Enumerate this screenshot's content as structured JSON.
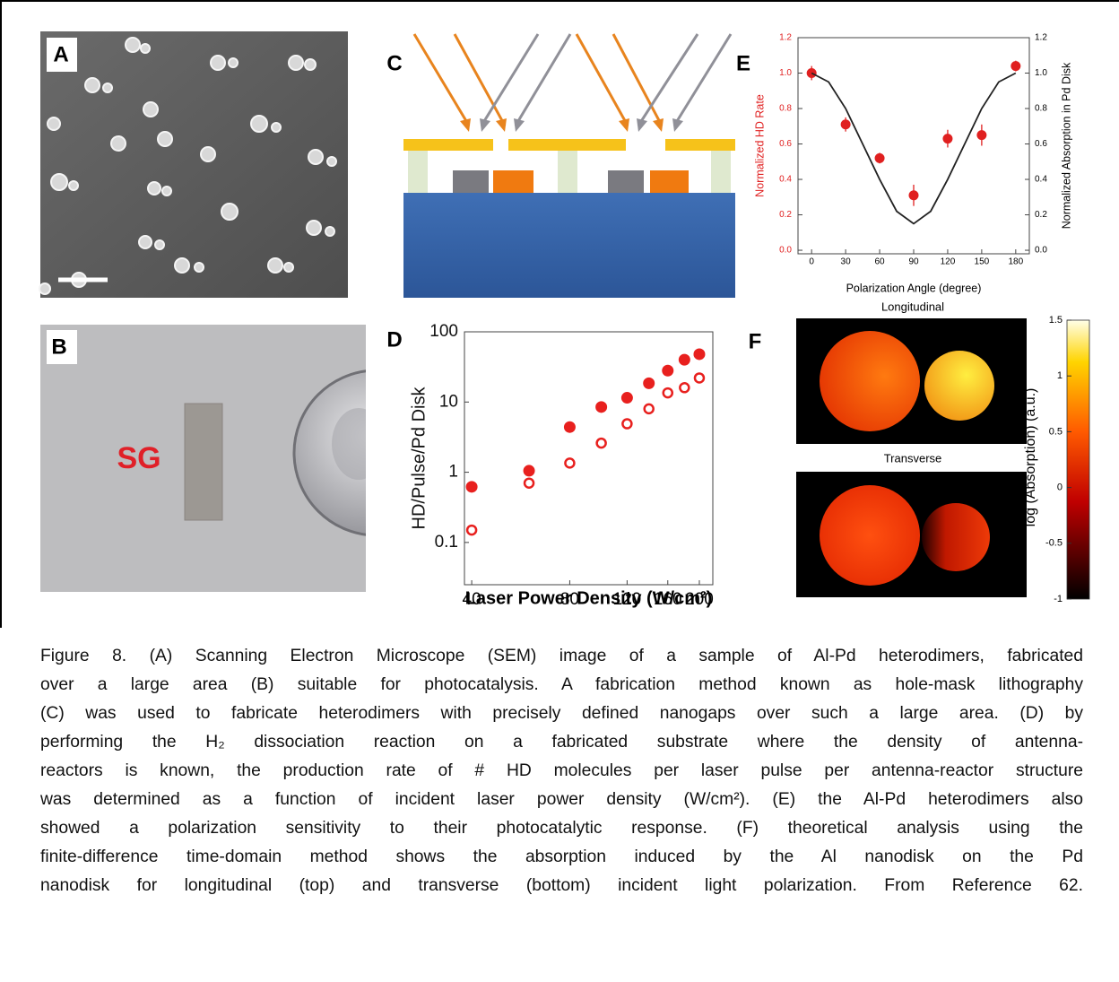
{
  "panel_labels": [
    "A",
    "B",
    "C",
    "D",
    "E",
    "F"
  ],
  "photo_b": {
    "label": "SG"
  },
  "chart_data": [
    {
      "type": "scatter",
      "y_label": "HD/Pulse/Pd Disk",
      "x_label": "Laser Power Density (W/cm²)",
      "x_scale": "log",
      "y_scale": "log",
      "xlim": [
        38,
        220
      ],
      "ylim": [
        0.025,
        100
      ],
      "xticks": [
        40,
        80,
        120,
        160,
        200
      ],
      "yticks": [
        0.1,
        1,
        10,
        100
      ],
      "series": [
        {
          "color": "#e8201e",
          "marker": "filled",
          "x": [
            40,
            60,
            80,
            100,
            120,
            140,
            160,
            180,
            200
          ],
          "values": [
            0.62,
            1.05,
            4.4,
            8.5,
            11.5,
            18.5,
            28,
            40,
            48
          ]
        },
        {
          "color": "#e8201e",
          "marker": "open",
          "x": [
            40,
            60,
            80,
            100,
            120,
            140,
            160,
            180,
            200
          ],
          "values": [
            0.15,
            0.7,
            1.35,
            2.6,
            4.9,
            8,
            13.5,
            16,
            22
          ]
        }
      ]
    },
    {
      "type": "scatter",
      "y_label": "Normalized HD Rate",
      "y2_label": "Normalized Absorption in Pd Disk",
      "x_label": "Polarization Angle (degree)",
      "y_color": "#e02020",
      "xlim": [
        -12,
        192
      ],
      "ylim": [
        -0.02,
        1.2
      ],
      "y2lim": [
        -0.02,
        1.2
      ],
      "xticks": [
        0,
        30,
        60,
        90,
        120,
        150,
        180
      ],
      "yticks": [
        {
          "value": 0,
          "label": "0.0"
        },
        0.2,
        0.4,
        0.6,
        0.8,
        {
          "value": 1,
          "label": "1.0"
        },
        1.2
      ],
      "y2ticks": [
        {
          "value": 0,
          "label": "0.0"
        },
        0.2,
        0.4,
        0.6,
        0.8,
        {
          "value": 1,
          "label": "1.0"
        },
        1.2
      ],
      "series": [
        {
          "color": "#e02020",
          "marker": "filled",
          "x": [
            0,
            30,
            60,
            90,
            120,
            150,
            180
          ],
          "values": [
            1.0,
            0.71,
            0.52,
            0.31,
            0.63,
            0.65,
            1.04
          ],
          "errors": [
            0.04,
            0.04,
            0.03,
            0.06,
            0.05,
            0.06,
            0.03
          ]
        },
        {
          "color": "#222222",
          "mode": "line",
          "axis": "y2",
          "x": [
            0,
            15,
            30,
            45,
            60,
            75,
            90,
            105,
            120,
            135,
            150,
            165,
            180
          ],
          "values": [
            1.0,
            0.95,
            0.8,
            0.6,
            0.4,
            0.22,
            0.15,
            0.22,
            0.4,
            0.6,
            0.8,
            0.95,
            1.0
          ]
        }
      ]
    }
  ],
  "panel_f": {
    "top_label": "Longitudinal",
    "bottom_label": "Transverse",
    "colorbar": {
      "label": "log (Absorption) (a.u.)",
      "lim": [
        -1,
        1.5
      ],
      "ticks": [
        1.5,
        1,
        0.5,
        0,
        -0.5,
        -1
      ]
    }
  },
  "caption": {
    "lines": [
      "Figure 8. (A)  Scanning Electron Microscope (SEM) image of a sample of Al-Pd heterodimers, fabricated",
      "over a large area (B) suitable for photocatalysis.  A fabrication method known as hole-mask lithography",
      "(C) was used to fabricate heterodimers with precisely defined nanogaps over such a large area.  (D) by",
      "performing the H₂ dissociation reaction on a fabricated substrate where the density of antenna-",
      "reactors is known, the production rate of # HD molecules per laser pulse per antenna-reactor structure",
      "was determined as a function of incident laser power density (W/cm²). (E) the Al-Pd heterodimers also",
      "showed a polarization sensitivity to their photocatalytic response.  (F) theoretical analysis using the",
      "finite-difference time-domain method shows the absorption induced by the Al nanodisk on the Pd",
      "nanodisk for longitudinal (top) and transverse (bottom) incident light polarization. From Reference 62."
    ]
  }
}
